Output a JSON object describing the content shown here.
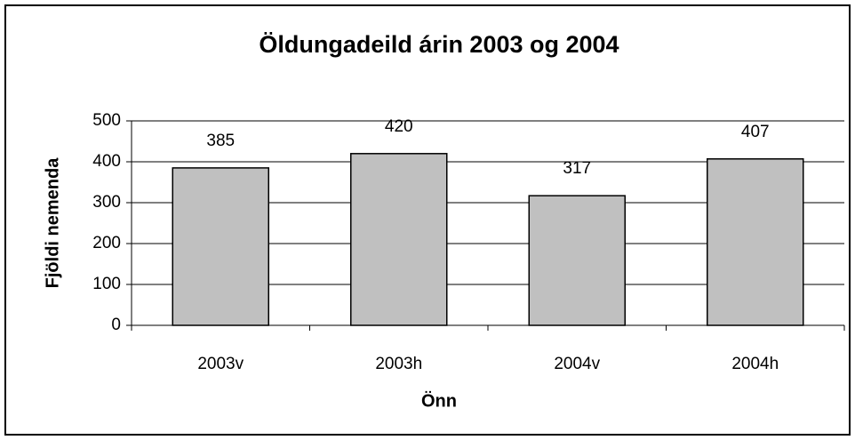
{
  "chart_data": {
    "type": "bar",
    "title": "Öldungadeild árin 2003 og 2004",
    "x_label": "Önn",
    "y_label": "Fjöldi nemenda",
    "categories": [
      "2003v",
      "2003h",
      "2004v",
      "2004h"
    ],
    "values": [
      385,
      420,
      317,
      407
    ],
    "color": "#c0c0c0",
    "ylim": [
      0,
      500
    ],
    "yticks": [
      0,
      100,
      200,
      300,
      400,
      500
    ],
    "grid": true
  }
}
